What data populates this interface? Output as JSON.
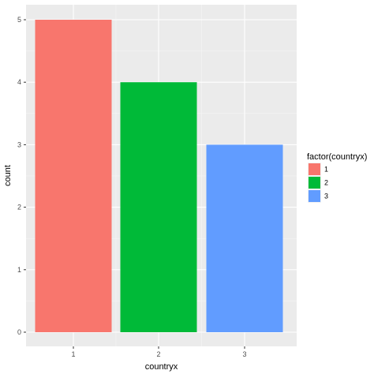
{
  "chart_data": {
    "type": "bar",
    "categories": [
      "1",
      "2",
      "3"
    ],
    "values": [
      5,
      4,
      3
    ],
    "xlabel": "countryx",
    "ylabel": "count",
    "ylim": [
      0,
      5
    ],
    "yticks": [
      "0",
      "1",
      "2",
      "3",
      "4",
      "5"
    ],
    "grid": true,
    "legend": {
      "title": "factor(countryx)",
      "position": "right",
      "entries": [
        "1",
        "2",
        "3"
      ]
    },
    "colors": [
      "#F8766D",
      "#00BA38",
      "#619CFF"
    ],
    "panel_background": "#EBEBEB"
  }
}
